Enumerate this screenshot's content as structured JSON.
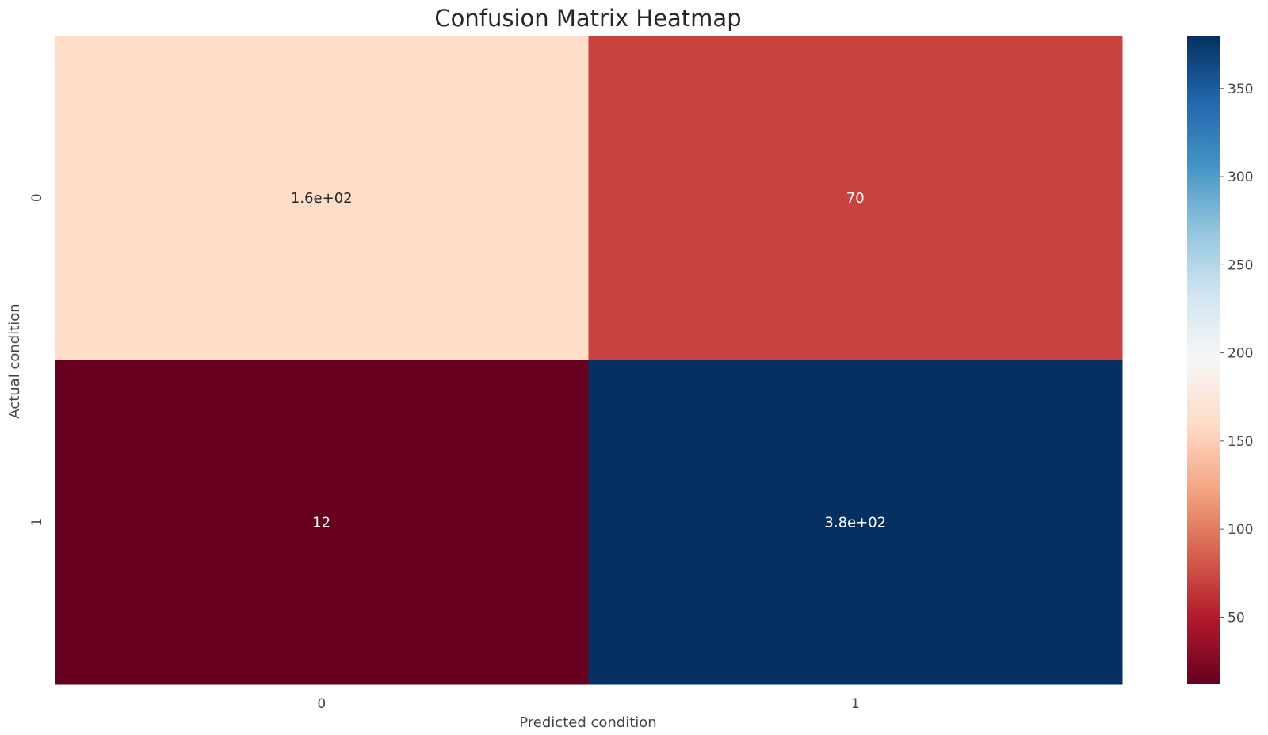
{
  "chart_data": {
    "type": "heatmap",
    "title": "Confusion Matrix Heatmap",
    "xlabel": "Predicted condition",
    "ylabel": "Actual condition",
    "x_categories": [
      "0",
      "1"
    ],
    "y_categories": [
      "0",
      "1"
    ],
    "values": [
      [
        160,
        70
      ],
      [
        12,
        380
      ]
    ],
    "annotations": [
      [
        "1.6e+02",
        "70"
      ],
      [
        "12",
        "3.8e+02"
      ]
    ],
    "colormap": "RdBu",
    "colorbar": {
      "vmin": 12,
      "vmax": 380,
      "ticks": [
        50,
        100,
        150,
        200,
        250,
        300,
        350
      ],
      "tick_labels": [
        "50",
        "100",
        "150",
        "200",
        "250",
        "300",
        "350"
      ]
    },
    "grid": false,
    "legend": "colorbar-right"
  }
}
